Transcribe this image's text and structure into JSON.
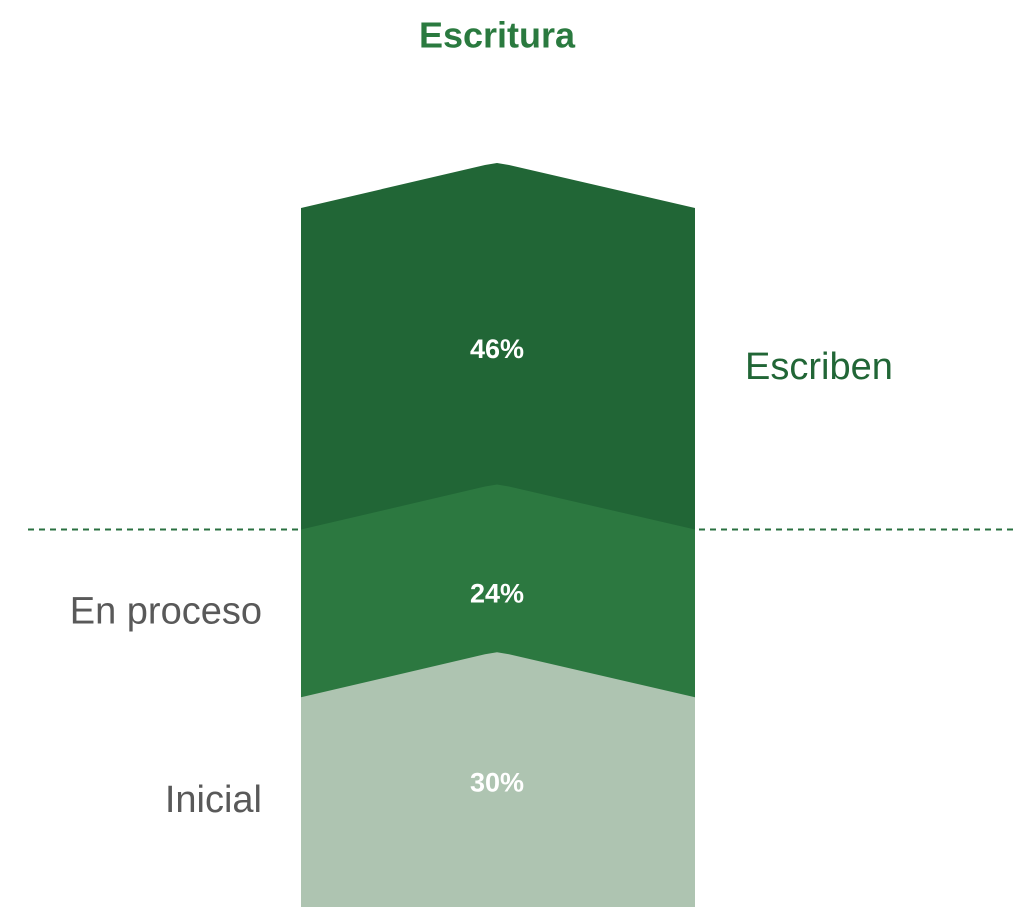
{
  "chart_data": {
    "type": "bar",
    "stacked": true,
    "title": "Escritura",
    "series": [
      {
        "name": "Inicial",
        "color": "#aec4b1",
        "values": [
          30
        ],
        "value_labels": [
          "30%"
        ]
      },
      {
        "name": "En proceso",
        "color": "#2c7840",
        "values": [
          24
        ],
        "value_labels": [
          "24%"
        ]
      },
      {
        "name": "Escriben",
        "color": "#216636",
        "values": [
          46
        ],
        "value_labels": [
          "46%"
        ]
      }
    ]
  }
}
